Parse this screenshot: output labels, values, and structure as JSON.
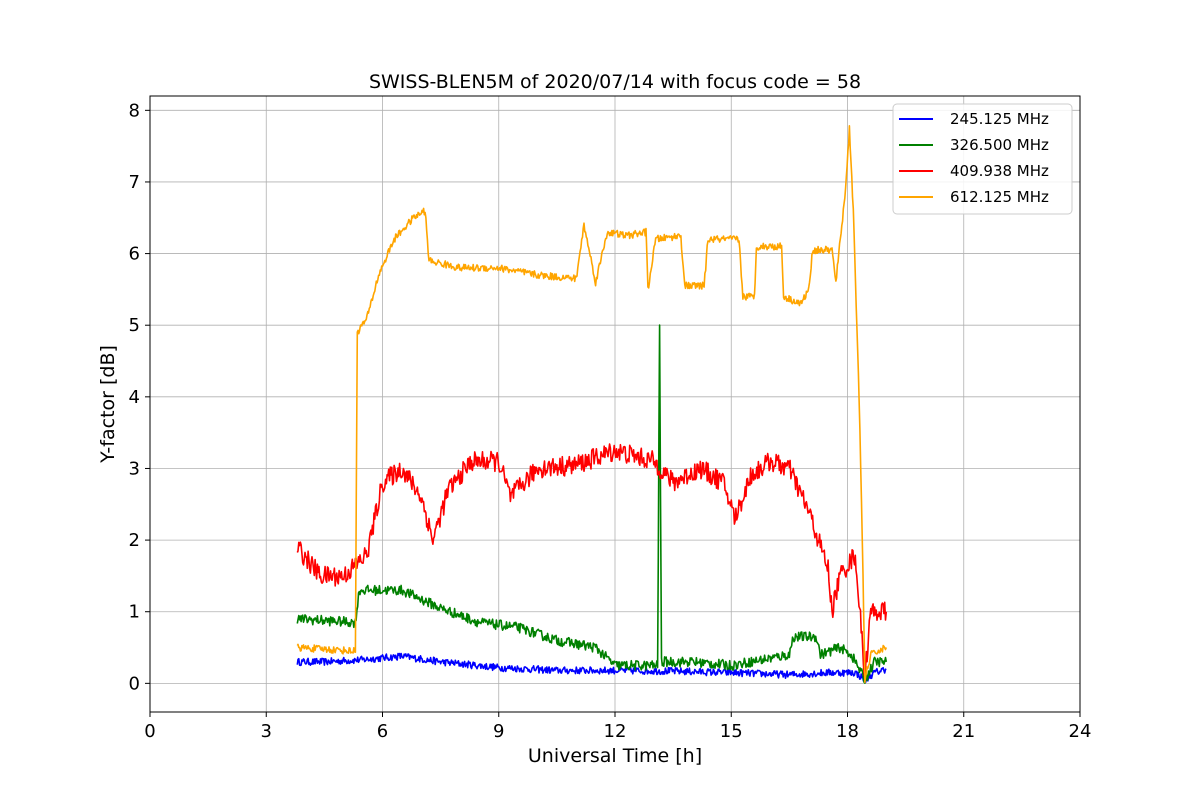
{
  "chart_data": {
    "type": "line",
    "title": "SWISS-BLEN5M of 2020/07/14 with focus code = 58",
    "xlabel": "Universal Time [h]",
    "ylabel": "Y-factor [dB]",
    "xlim": [
      0,
      24
    ],
    "ylim": [
      -0.4,
      8.2
    ],
    "xticks": [
      0,
      3,
      6,
      9,
      12,
      15,
      18,
      21,
      24
    ],
    "yticks": [
      0,
      1,
      2,
      3,
      4,
      5,
      6,
      7,
      8
    ],
    "grid": true,
    "legend_position": "top-right",
    "series": [
      {
        "name": "245.125 MHz",
        "color": "#0000ff",
        "noise": 0.05,
        "points": [
          [
            3.8,
            0.3
          ],
          [
            4.5,
            0.3
          ],
          [
            5.5,
            0.33
          ],
          [
            6.5,
            0.38
          ],
          [
            7.5,
            0.3
          ],
          [
            9,
            0.22
          ],
          [
            10.5,
            0.18
          ],
          [
            12,
            0.18
          ],
          [
            13.5,
            0.17
          ],
          [
            15,
            0.15
          ],
          [
            16.5,
            0.12
          ],
          [
            17.5,
            0.15
          ],
          [
            18.2,
            0.15
          ],
          [
            18.45,
            0.05
          ],
          [
            18.7,
            0.15
          ],
          [
            19,
            0.2
          ]
        ]
      },
      {
        "name": "326.500 MHz",
        "color": "#008000",
        "noise": 0.07,
        "points": [
          [
            3.8,
            0.9
          ],
          [
            5.3,
            0.85
          ],
          [
            5.4,
            1.3
          ],
          [
            6.5,
            1.3
          ],
          [
            7.5,
            1.05
          ],
          [
            8.5,
            0.85
          ],
          [
            9.5,
            0.78
          ],
          [
            10.5,
            0.6
          ],
          [
            11.5,
            0.5
          ],
          [
            12,
            0.25
          ],
          [
            13,
            0.25
          ],
          [
            13.1,
            0.25
          ],
          [
            13.15,
            4.98
          ],
          [
            13.2,
            0.3
          ],
          [
            14,
            0.3
          ],
          [
            15,
            0.25
          ],
          [
            16,
            0.35
          ],
          [
            16.5,
            0.4
          ],
          [
            16.6,
            0.65
          ],
          [
            17.2,
            0.65
          ],
          [
            17.3,
            0.4
          ],
          [
            17.8,
            0.5
          ],
          [
            18.1,
            0.4
          ],
          [
            18.45,
            0.05
          ],
          [
            18.7,
            0.3
          ],
          [
            19,
            0.3
          ]
        ]
      },
      {
        "name": "409.938 MHz",
        "color": "#ff0000",
        "noise": 0.14,
        "points": [
          [
            3.8,
            1.9
          ],
          [
            4.4,
            1.5
          ],
          [
            5.0,
            1.5
          ],
          [
            5.6,
            1.8
          ],
          [
            6.0,
            2.8
          ],
          [
            6.5,
            3.0
          ],
          [
            7.0,
            2.6
          ],
          [
            7.3,
            2.0
          ],
          [
            7.7,
            2.7
          ],
          [
            8.3,
            3.1
          ],
          [
            9,
            3.1
          ],
          [
            9.3,
            2.6
          ],
          [
            10,
            3.0
          ],
          [
            11,
            3.05
          ],
          [
            12,
            3.25
          ],
          [
            13,
            3.1
          ],
          [
            13.5,
            2.8
          ],
          [
            14.2,
            3.0
          ],
          [
            14.8,
            2.8
          ],
          [
            15.1,
            2.3
          ],
          [
            15.5,
            2.9
          ],
          [
            16,
            3.1
          ],
          [
            16.5,
            3.0
          ],
          [
            17.0,
            2.4
          ],
          [
            17.5,
            1.6
          ],
          [
            17.6,
            1.0
          ],
          [
            17.8,
            1.5
          ],
          [
            18.2,
            1.8
          ],
          [
            18.45,
            0.1
          ],
          [
            18.6,
            1.0
          ],
          [
            19,
            1.0
          ]
        ]
      },
      {
        "name": "612.125 MHz",
        "color": "#ffa500",
        "noise": 0.05,
        "points": [
          [
            3.8,
            0.5
          ],
          [
            5.3,
            0.45
          ],
          [
            5.35,
            4.9
          ],
          [
            5.6,
            5.1
          ],
          [
            5.9,
            5.7
          ],
          [
            6.3,
            6.2
          ],
          [
            6.8,
            6.5
          ],
          [
            7.1,
            6.6
          ],
          [
            7.2,
            5.9
          ],
          [
            8,
            5.8
          ],
          [
            9,
            5.8
          ],
          [
            10,
            5.7
          ],
          [
            11,
            5.65
          ],
          [
            11.2,
            6.4
          ],
          [
            11.5,
            5.6
          ],
          [
            11.8,
            6.3
          ],
          [
            12.3,
            6.25
          ],
          [
            12.8,
            6.3
          ],
          [
            12.85,
            5.5
          ],
          [
            13.05,
            6.2
          ],
          [
            13.7,
            6.25
          ],
          [
            13.8,
            5.55
          ],
          [
            14.3,
            5.55
          ],
          [
            14.4,
            6.2
          ],
          [
            15.2,
            6.2
          ],
          [
            15.3,
            5.4
          ],
          [
            15.6,
            5.4
          ],
          [
            15.65,
            6.1
          ],
          [
            16.3,
            6.1
          ],
          [
            16.35,
            5.4
          ],
          [
            16.8,
            5.3
          ],
          [
            17.0,
            5.5
          ],
          [
            17.1,
            6.05
          ],
          [
            17.6,
            6.05
          ],
          [
            17.7,
            5.6
          ],
          [
            17.95,
            6.9
          ],
          [
            18.05,
            7.75
          ],
          [
            18.15,
            6.6
          ],
          [
            18.3,
            4.0
          ],
          [
            18.4,
            1.5
          ],
          [
            18.45,
            0.05
          ],
          [
            18.6,
            0.4
          ],
          [
            19,
            0.5
          ]
        ]
      }
    ]
  }
}
